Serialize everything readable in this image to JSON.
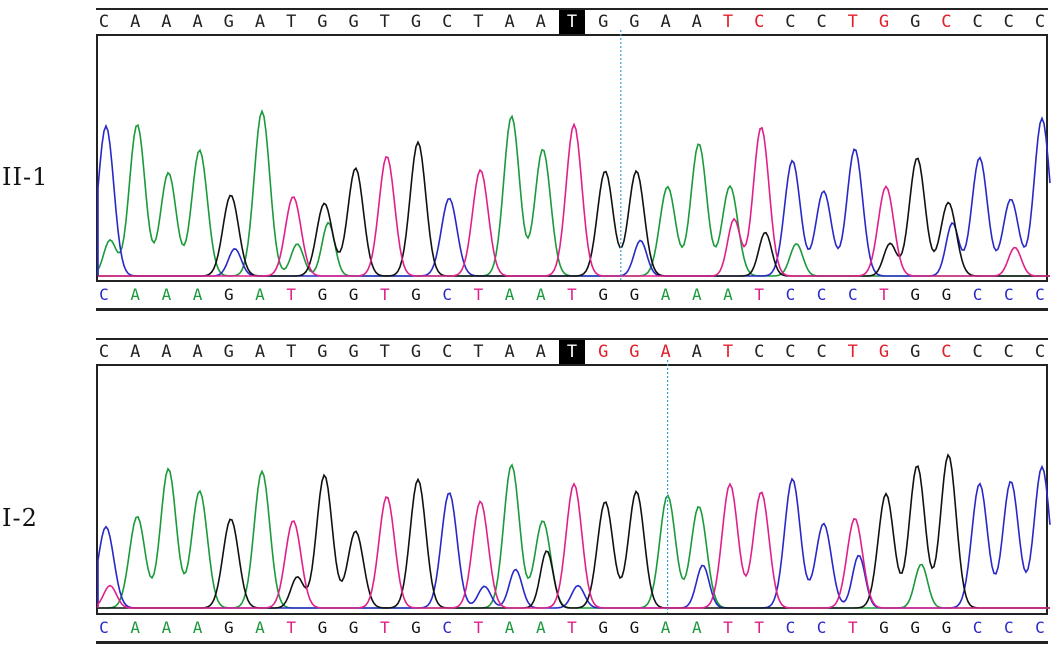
{
  "samples": [
    {
      "label": "II-1",
      "reference": [
        "C",
        "A",
        "A",
        "A",
        "G",
        "A",
        "T",
        "G",
        "G",
        "T",
        "G",
        "C",
        "T",
        "A",
        "A",
        "T",
        "G",
        "G",
        "A",
        "A",
        "T",
        "C",
        "C",
        "C",
        "T",
        "G",
        "G",
        "C",
        "C",
        "C",
        "C"
      ],
      "reference_red_indices": [
        20,
        21,
        24,
        25,
        27
      ],
      "highlight_index": 15,
      "cursor_between": [
        16,
        17
      ],
      "called": [
        "C",
        "A",
        "A",
        "A",
        "G",
        "A",
        "T",
        "G",
        "G",
        "T",
        "G",
        "C",
        "T",
        "A",
        "A",
        "T",
        "G",
        "G",
        "A",
        "A",
        "A",
        "T",
        "C",
        "C",
        "C",
        "T",
        "G",
        "G",
        "C",
        "C",
        "C"
      ]
    },
    {
      "label": "I-2",
      "reference": [
        "C",
        "A",
        "A",
        "A",
        "G",
        "A",
        "T",
        "G",
        "G",
        "T",
        "G",
        "C",
        "T",
        "A",
        "A",
        "T",
        "G",
        "G",
        "A",
        "A",
        "T",
        "C",
        "C",
        "C",
        "T",
        "G",
        "G",
        "C",
        "C",
        "C",
        "C"
      ],
      "reference_red_indices": [
        16,
        17,
        18,
        20,
        24,
        25,
        27
      ],
      "highlight_index": 15,
      "cursor_between": [
        18,
        18
      ],
      "called": [
        "C",
        "A",
        "A",
        "A",
        "G",
        "A",
        "T",
        "G",
        "G",
        "T",
        "G",
        "C",
        "T",
        "A",
        "A",
        "T",
        "G",
        "G",
        "A",
        "A",
        "T",
        "T",
        "C",
        "C",
        "T",
        "G",
        "G",
        "G",
        "C",
        "C",
        "C"
      ]
    }
  ],
  "base_colors": {
    "A": "#1a9a3a",
    "C": "#2828c8",
    "G": "#111111",
    "T": "#e0208a"
  },
  "highlight_color": "#000000",
  "mismatch_color": "#e0202a",
  "cursor_color": "#3aa0d0"
}
